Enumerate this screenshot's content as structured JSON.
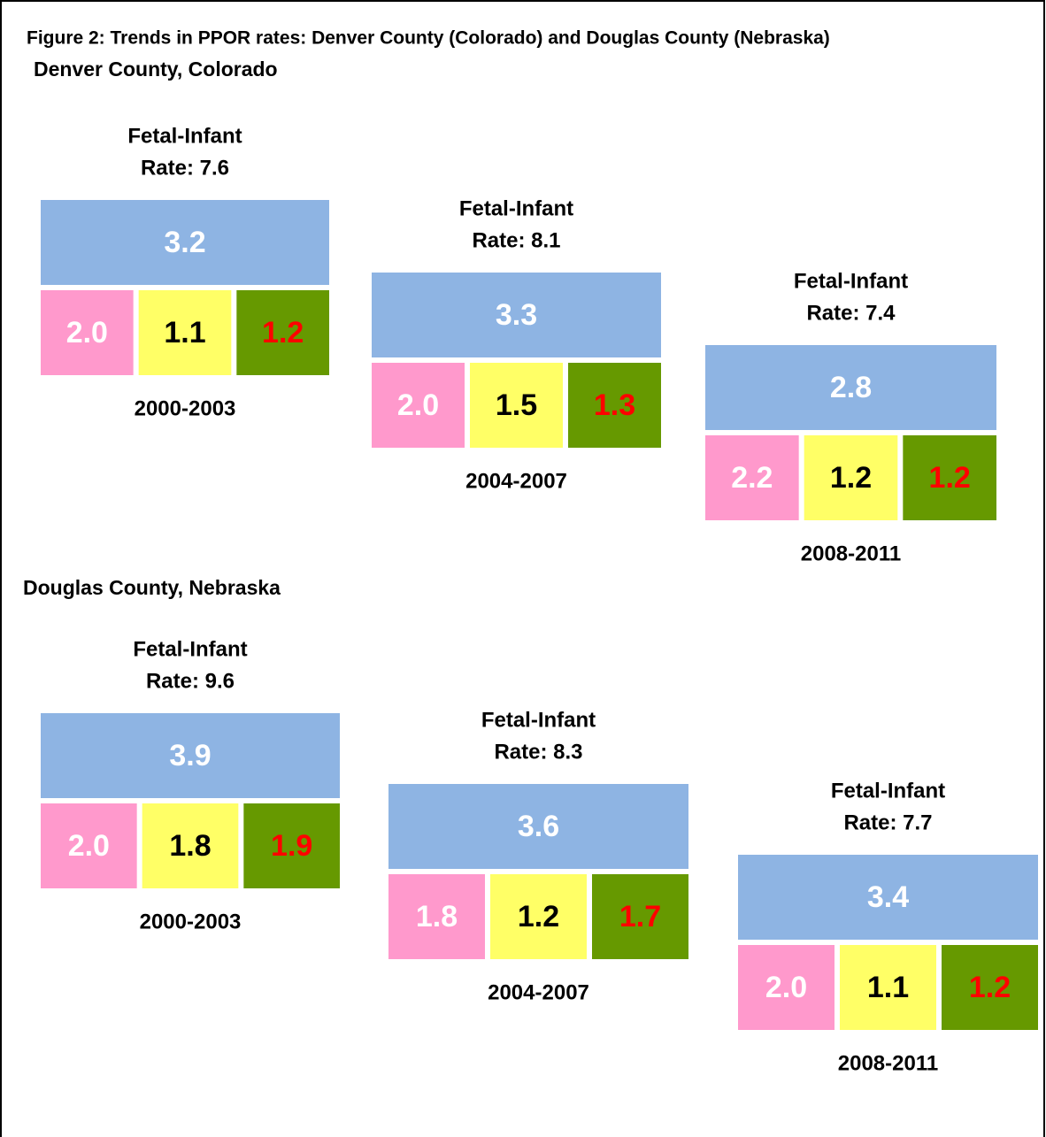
{
  "title": "Figure 2: Trends in PPOR rates: Denver County (Colorado) and Douglas County (Nebraska)",
  "sections": [
    {
      "label": "Denver County, Colorado",
      "panels": [
        {
          "heading": "Fetal-Infant",
          "rate": "Rate: 7.6",
          "top": "3.2",
          "bottom": [
            "2.0",
            "1.1",
            "1.2"
          ],
          "period": "2000-2003"
        },
        {
          "heading": "Fetal-Infant",
          "rate": "Rate: 8.1",
          "top": "3.3",
          "bottom": [
            "2.0",
            "1.5",
            "1.3"
          ],
          "period": "2004-2007"
        },
        {
          "heading": "Fetal-Infant",
          "rate": "Rate: 7.4",
          "top": "2.8",
          "bottom": [
            "2.2",
            "1.2",
            "1.2"
          ],
          "period": "2008-2011"
        }
      ]
    },
    {
      "label": "Douglas County, Nebraska",
      "panels": [
        {
          "heading": "Fetal-Infant",
          "rate": "Rate: 9.6",
          "top": "3.9",
          "bottom": [
            "2.0",
            "1.8",
            "1.9"
          ],
          "period": "2000-2003"
        },
        {
          "heading": "Fetal-Infant",
          "rate": "Rate: 8.3",
          "top": "3.6",
          "bottom": [
            "1.8",
            "1.2",
            "1.7"
          ],
          "period": "2004-2007"
        },
        {
          "heading": "Fetal-Infant",
          "rate": "Rate: 7.7",
          "top": "3.4",
          "bottom": [
            "2.0",
            "1.1",
            "1.2"
          ],
          "period": "2008-2011"
        }
      ]
    }
  ]
}
